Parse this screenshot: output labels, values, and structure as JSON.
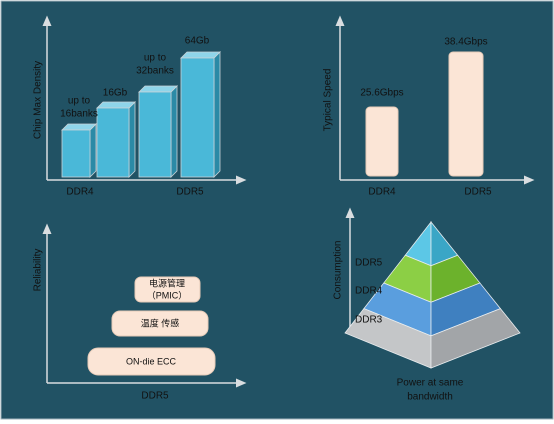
{
  "density": {
    "axis_label": "Chip Max Density",
    "bar_labels": [
      [
        "up to",
        "16banks"
      ],
      [
        "16Gb"
      ],
      [
        "up to",
        "32banks"
      ],
      [
        "64Gb"
      ]
    ],
    "x_labels": [
      "DDR4",
      "DDR5"
    ]
  },
  "speed": {
    "axis_label": "Typical Speed",
    "bar_labels": [
      "25.6Gbps",
      "38.4Gbps"
    ],
    "x_labels": [
      "DDR4",
      "DDR5"
    ]
  },
  "reliability": {
    "axis_label": "Reliability",
    "features": [
      [
        "电源管理",
        "（PMIC）"
      ],
      [
        "温度 传感"
      ],
      [
        "ON-die ECC"
      ]
    ],
    "x_label": "DDR5"
  },
  "consumption": {
    "axis_label": "Consumption",
    "layers": [
      "DDR5",
      "DDR4",
      "DDR3"
    ],
    "x_label": [
      "Power at same",
      "bandwidth"
    ]
  }
}
